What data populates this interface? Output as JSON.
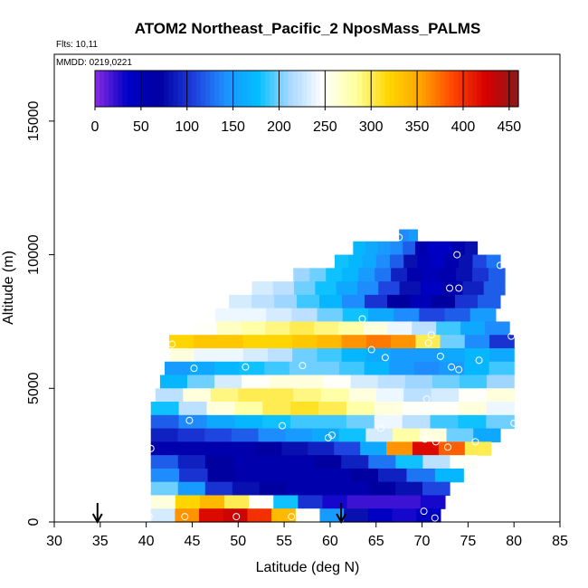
{
  "chart_data": {
    "type": "heatmap",
    "title": "ATOM2 Northeast_Pacific_2 NposMass_PALMS",
    "flights_label": "Flts: 10,11",
    "dates_label": "MMDD: 0219,0221",
    "xlabel": "Latitude (deg N)",
    "ylabel": "Altitude (m)",
    "xlim": [
      30,
      85
    ],
    "ylim": [
      0,
      17500
    ],
    "x_ticks": [
      "30",
      "35",
      "40",
      "45",
      "50",
      "55",
      "60",
      "65",
      "70",
      "75",
      "80",
      "85"
    ],
    "y_ticks": [
      "0",
      "5000",
      "10000",
      "15000"
    ],
    "colorbar": {
      "min": 0,
      "max": 460,
      "ticks": [
        "0",
        "50",
        "100",
        "150",
        "200",
        "250",
        "300",
        "350",
        "400",
        "450"
      ],
      "colors": [
        "#8a2be2",
        "#0000c8",
        "#0000a0",
        "#1e3cdc",
        "#1e90ff",
        "#00bfff",
        "#aad8ff",
        "#ffffff",
        "#ffffa0",
        "#ffd700",
        "#ffa500",
        "#ff4500",
        "#d70000",
        "#8b1a1a"
      ]
    },
    "arrows_lat": [
      34.7,
      61.2
    ],
    "bands": [
      {
        "alt": 10700,
        "lat_min": 67.5,
        "lat_max": 69.5,
        "values": [
          140,
          150
        ]
      },
      {
        "alt": 10250,
        "lat_min": 62.5,
        "lat_max": 76,
        "values": [
          170,
          160,
          150,
          140,
          120,
          60,
          40,
          40,
          60,
          80
        ]
      },
      {
        "alt": 9750,
        "lat_min": 60.5,
        "lat_max": 78.5,
        "values": [
          180,
          170,
          160,
          140,
          120,
          80,
          50,
          40,
          60,
          80,
          110,
          130
        ]
      },
      {
        "alt": 9250,
        "lat_min": 56,
        "lat_max": 79,
        "values": [
          210,
          200,
          180,
          170,
          150,
          130,
          90,
          60,
          50,
          60,
          80,
          100,
          120
        ]
      },
      {
        "alt": 8750,
        "lat_min": 51.5,
        "lat_max": 79,
        "values": [
          230,
          220,
          200,
          180,
          160,
          140,
          110,
          80,
          40,
          60,
          90,
          120
        ]
      },
      {
        "alt": 8250,
        "lat_min": 49,
        "lat_max": 78.5,
        "values": [
          230,
          220,
          210,
          190,
          170,
          140,
          100,
          70,
          50,
          70,
          100,
          120
        ]
      },
      {
        "alt": 7750,
        "lat_min": 47.5,
        "lat_max": 78,
        "values": [
          240,
          240,
          230,
          220,
          200,
          180,
          160,
          140,
          110,
          120,
          150
        ]
      },
      {
        "alt": 7250,
        "lat_min": 45,
        "lat_max": 79.5,
        "values": [
          250,
          270,
          280,
          290,
          300,
          290,
          280,
          260,
          240,
          220,
          190,
          160,
          140
        ]
      },
      {
        "alt": 6750,
        "lat_min": 42.5,
        "lat_max": 80,
        "values": [
          320,
          330,
          330,
          320,
          320,
          330,
          340,
          360,
          370,
          360,
          300,
          200,
          140,
          100
        ]
      },
      {
        "alt": 6250,
        "lat_min": 42.5,
        "lat_max": 80,
        "values": [
          260,
          240,
          240,
          230,
          220,
          200,
          190,
          170,
          160,
          150,
          150,
          160,
          170,
          160
        ]
      },
      {
        "alt": 5750,
        "lat_min": 42,
        "lat_max": 80,
        "values": [
          150,
          160,
          170,
          180,
          190,
          200,
          200,
          190,
          170,
          150,
          140,
          150,
          170,
          190
        ]
      },
      {
        "alt": 5250,
        "lat_min": 41.5,
        "lat_max": 80,
        "values": [
          170,
          200,
          230,
          250,
          260,
          260,
          250,
          230,
          220,
          210,
          200,
          190,
          210
        ]
      },
      {
        "alt": 4750,
        "lat_min": 41,
        "lat_max": 80,
        "values": [
          220,
          260,
          290,
          300,
          300,
          290,
          280,
          260,
          240,
          220,
          230,
          250,
          260
        ]
      },
      {
        "alt": 4250,
        "lat_min": 40.5,
        "lat_max": 80,
        "values": [
          180,
          220,
          260,
          280,
          300,
          310,
          300,
          280,
          260,
          250,
          250,
          260,
          240
        ]
      },
      {
        "alt": 3750,
        "lat_min": 40.5,
        "lat_max": 80,
        "values": [
          120,
          140,
          160,
          170,
          180,
          190,
          190,
          200,
          240,
          220,
          190,
          180,
          200
        ]
      },
      {
        "alt": 3250,
        "lat_min": 40.5,
        "lat_max": 78.5,
        "values": [
          90,
          100,
          110,
          120,
          140,
          150,
          160,
          180,
          230,
          280,
          260,
          200,
          160
        ]
      },
      {
        "alt": 2750,
        "lat_min": 40.5,
        "lat_max": 77.5,
        "values": [
          60,
          60,
          60,
          60,
          70,
          80,
          90,
          110,
          160,
          360,
          420,
          380,
          300
        ]
      },
      {
        "alt": 2250,
        "lat_min": 40.5,
        "lat_max": 76,
        "values": [
          120,
          90,
          70,
          60,
          60,
          60,
          70,
          90,
          130,
          180,
          220,
          250
        ]
      },
      {
        "alt": 1750,
        "lat_min": 40.5,
        "lat_max": 74.5,
        "values": [
          140,
          100,
          70,
          60,
          60,
          60,
          60,
          70,
          90,
          130,
          170
        ]
      },
      {
        "alt": 1250,
        "lat_min": 40.5,
        "lat_max": 73,
        "values": [
          200,
          150,
          100,
          80,
          70,
          60,
          60,
          60,
          70,
          80,
          110
        ]
      },
      {
        "alt": 750,
        "lat_min": 40.5,
        "lat_max": 72.5,
        "values": [
          260,
          320,
          340,
          300,
          250,
          180,
          100,
          30,
          20,
          20,
          20,
          30
        ]
      },
      {
        "alt": 250,
        "lat_min": 40.5,
        "lat_max": 72,
        "values": [
          230,
          360,
          420,
          430,
          400,
          340,
          250,
          150,
          80,
          40,
          30,
          40
        ]
      }
    ],
    "points": [
      [
        40.3,
        200
      ],
      [
        44.2,
        200
      ],
      [
        49.8,
        200
      ],
      [
        55.8,
        200
      ],
      [
        70.2,
        400
      ],
      [
        71.4,
        150
      ],
      [
        40.5,
        2750
      ],
      [
        44.7,
        3800
      ],
      [
        54.8,
        3600
      ],
      [
        59.8,
        3150
      ],
      [
        60.2,
        3250
      ],
      [
        65.5,
        3500
      ],
      [
        70.3,
        3100
      ],
      [
        70.6,
        3250
      ],
      [
        71.5,
        3000
      ],
      [
        72.8,
        2800
      ],
      [
        75.8,
        3000
      ],
      [
        80,
        3700
      ],
      [
        70.5,
        4600
      ],
      [
        45.2,
        5750
      ],
      [
        50.8,
        5800
      ],
      [
        57,
        5850
      ],
      [
        66,
        6150
      ],
      [
        72,
        6200
      ],
      [
        73.2,
        5800
      ],
      [
        74,
        5700
      ],
      [
        76.2,
        6050
      ],
      [
        42.8,
        6650
      ],
      [
        64.5,
        6450
      ],
      [
        70.7,
        6700
      ],
      [
        71,
        7000
      ],
      [
        79.7,
        6950
      ],
      [
        63.5,
        7600
      ],
      [
        73,
        8750
      ],
      [
        74,
        8750
      ],
      [
        73.8,
        10000
      ],
      [
        78.5,
        9600
      ],
      [
        67.5,
        10650
      ]
    ]
  }
}
